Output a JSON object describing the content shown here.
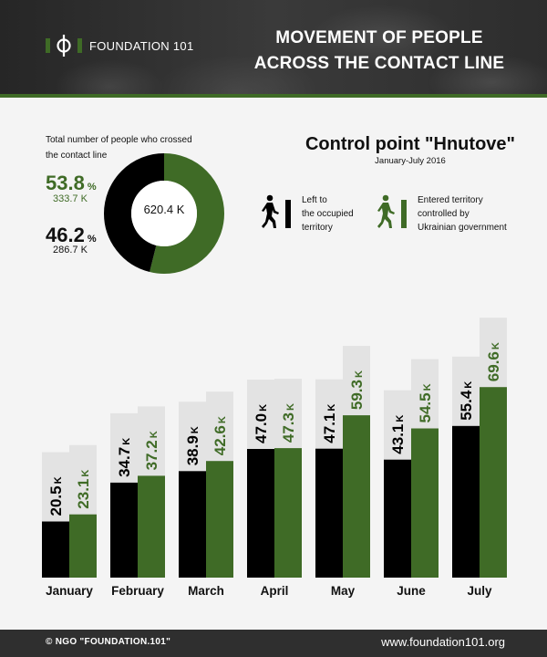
{
  "header": {
    "logo_text": "FOUNDATION 101",
    "title_line1": "MOVEMENT OF PEOPLE",
    "title_line2": "ACROSS THE CONTACT LINE"
  },
  "summary": {
    "label_line1": "Total number of people who crossed",
    "label_line2": "the contact line",
    "green_pct": "53.8",
    "green_count": "333.7 K",
    "black_pct": "46.2",
    "black_count": "286.7 K",
    "pct_sign": "%",
    "total": "620.4 K"
  },
  "control_point": {
    "title": "Control point \"Hnutove\"",
    "period": "January-July 2016"
  },
  "legend": {
    "left_line1": "Left to",
    "left_line2": "the occupied",
    "left_line3": "territory",
    "entered_line1": "Entered territory",
    "entered_line2": "controlled by",
    "entered_line3": "Ukrainian government"
  },
  "colors": {
    "green": "#3f6b26",
    "black": "#000000",
    "light_gray": "#e3e3e3",
    "dark_gray": "#2f2f2f"
  },
  "chart_data": {
    "type": "bar",
    "categories": [
      "January",
      "February",
      "March",
      "April",
      "May",
      "June",
      "July"
    ],
    "unit": "K",
    "series": [
      {
        "name": "Left to the occupied territory",
        "color": "#000000",
        "values": [
          20.5,
          34.7,
          38.9,
          47.0,
          47.1,
          43.1,
          55.4
        ]
      },
      {
        "name": "Entered territory controlled by Ukrainian government",
        "color": "#3f6b26",
        "values": [
          23.1,
          37.2,
          42.6,
          47.3,
          59.3,
          54.5,
          69.6
        ]
      }
    ],
    "labels": [
      [
        "20.5",
        "34.7",
        "38.9",
        "47.0",
        "47.1",
        "43.1",
        "55.4"
      ],
      [
        "23.1",
        "37.2",
        "42.6",
        "47.3",
        "59.3",
        "54.5",
        "69.6"
      ]
    ],
    "donut": {
      "values": [
        53.8,
        46.2
      ],
      "colors": [
        "#3f6b26",
        "#000000"
      ]
    }
  },
  "footer": {
    "left": "© NGO \"FOUNDATION.101\"",
    "right": "www.foundation101.org"
  }
}
